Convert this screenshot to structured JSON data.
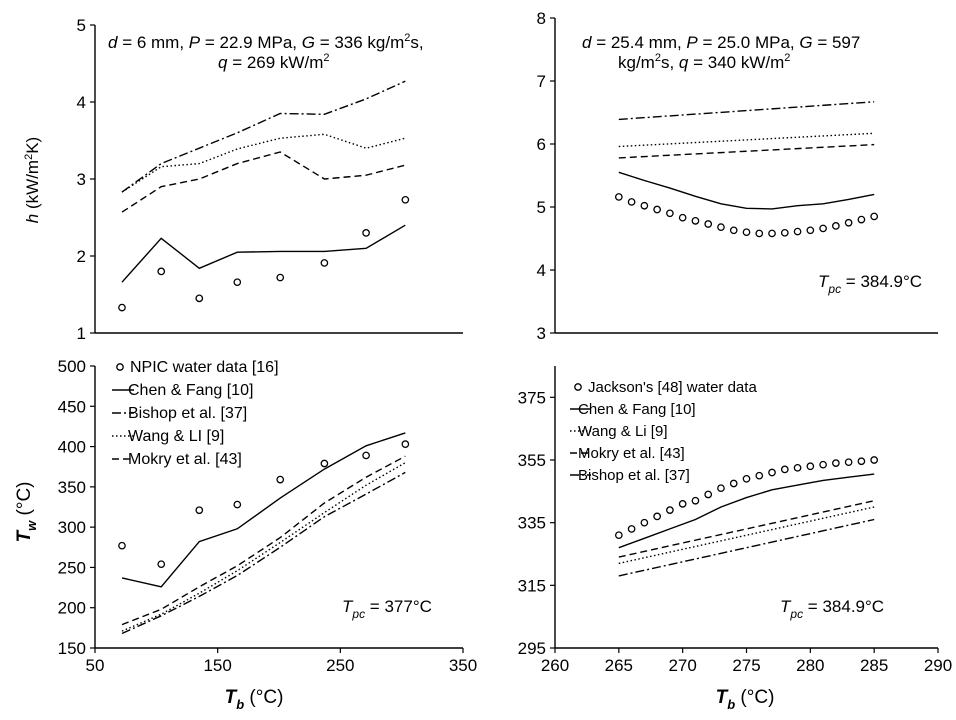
{
  "colors": {
    "line": "#000000",
    "background": "#ffffff"
  },
  "chart_data": [
    {
      "id": "tl",
      "type": "line",
      "ylabel": "h (kW/m2K)",
      "xlabel": "",
      "xlim": [
        50,
        350
      ],
      "ylim": [
        1,
        5
      ],
      "yticks": [
        1,
        2,
        3,
        4,
        5
      ],
      "show_x_ticks": false,
      "annotation_lines": [
        "d = 6 mm, P = 22.9 MPa, G = 336 kg/m2s,",
        "q = 269 kW/m2"
      ],
      "x": [
        72,
        104,
        135,
        166,
        201,
        237,
        271,
        303
      ],
      "series": [
        {
          "style": "circle",
          "values": [
            1.33,
            1.8,
            1.45,
            1.66,
            1.72,
            1.91,
            2.3,
            2.73
          ]
        },
        {
          "style": "solid",
          "values": [
            1.66,
            2.23,
            1.84,
            2.05,
            2.06,
            2.06,
            2.1,
            2.4
          ]
        },
        {
          "style": "dashed",
          "values": [
            2.57,
            2.9,
            3.0,
            3.2,
            3.35,
            3.0,
            3.05,
            3.18
          ]
        },
        {
          "style": "dotted",
          "values": [
            2.83,
            3.16,
            3.2,
            3.39,
            3.53,
            3.58,
            3.4,
            3.53
          ]
        },
        {
          "style": "dashdot",
          "values": [
            2.83,
            3.2,
            3.4,
            3.6,
            3.85,
            3.84,
            4.04,
            4.27
          ]
        }
      ]
    },
    {
      "id": "tr",
      "type": "line",
      "ylabel": "",
      "xlabel": "",
      "xlim": [
        260,
        290
      ],
      "ylim": [
        3,
        8
      ],
      "yticks": [
        3,
        4,
        5,
        6,
        7,
        8
      ],
      "show_x_ticks": false,
      "annotation_lines": [
        "d = 25.4 mm, P = 25.0 MPa, G = 597",
        "kg/m2s, q = 340 kW/m2"
      ],
      "tpc_label": "Tpc = 384.9°C",
      "series": [
        {
          "style": "circle",
          "x": [
            265,
            266,
            267,
            268,
            269,
            270,
            271,
            272,
            273,
            274,
            275,
            276,
            277,
            278,
            279,
            280,
            281,
            282,
            283,
            284,
            285
          ],
          "values": [
            5.16,
            5.08,
            5.02,
            4.96,
            4.9,
            4.83,
            4.78,
            4.73,
            4.68,
            4.63,
            4.6,
            4.58,
            4.58,
            4.59,
            4.61,
            4.63,
            4.66,
            4.7,
            4.75,
            4.8,
            4.85
          ]
        },
        {
          "style": "solid",
          "x": [
            265,
            267,
            269,
            271,
            273,
            275,
            277,
            279,
            281,
            283,
            285
          ],
          "values": [
            5.55,
            5.42,
            5.3,
            5.17,
            5.05,
            4.98,
            4.97,
            5.02,
            5.05,
            5.12,
            5.2
          ]
        },
        {
          "style": "dashed",
          "x": [
            265,
            285
          ],
          "values": [
            5.78,
            5.99
          ]
        },
        {
          "style": "dotted",
          "x": [
            265,
            285
          ],
          "values": [
            5.96,
            6.17
          ]
        },
        {
          "style": "dashdot",
          "x": [
            265,
            285
          ],
          "values": [
            6.39,
            6.67
          ]
        }
      ]
    },
    {
      "id": "bl",
      "type": "line",
      "ylabel": "Tw (°C)",
      "xlabel": "Tb (°C)",
      "xlim": [
        50,
        350
      ],
      "ylim": [
        150,
        500
      ],
      "yticks": [
        150,
        200,
        250,
        300,
        350,
        400,
        450,
        500
      ],
      "xticks": [
        50,
        150,
        250,
        350
      ],
      "xtick_labels": [
        "50",
        "150",
        "250",
        "350"
      ],
      "show_x_ticks": true,
      "tpc_label": "Tpc = 377°C",
      "x": [
        72,
        104,
        135,
        166,
        201,
        237,
        271,
        303
      ],
      "legend": [
        {
          "style": "circle",
          "label": "NPIC water data [16]"
        },
        {
          "style": "solid",
          "label": "Chen & Fang [10]"
        },
        {
          "style": "dashdot",
          "label": "Bishop et al. [37]"
        },
        {
          "style": "dotted",
          "label": "Wang & LI [9]"
        },
        {
          "style": "dashed",
          "label": "Mokry et al. [43]"
        }
      ],
      "series": [
        {
          "style": "circle",
          "values": [
            277,
            254,
            321,
            328,
            359,
            379,
            389,
            403
          ]
        },
        {
          "style": "solid",
          "values": [
            237,
            226,
            282,
            298,
            336,
            372,
            401,
            417
          ]
        },
        {
          "style": "dashed",
          "values": [
            179,
            198,
            226,
            252,
            287,
            330,
            362,
            388
          ]
        },
        {
          "style": "dotted",
          "values": [
            171,
            192,
            218,
            246,
            281,
            318,
            352,
            380
          ]
        },
        {
          "style": "dashdot",
          "values": [
            168,
            190,
            214,
            240,
            275,
            313,
            341,
            368
          ]
        }
      ]
    },
    {
      "id": "br",
      "type": "line",
      "ylabel": "",
      "xlabel": "Tb (°C)",
      "xlim": [
        260,
        290
      ],
      "ylim": [
        295,
        385
      ],
      "yticks": [
        295,
        315,
        335,
        355,
        375
      ],
      "xticks": [
        260,
        265,
        270,
        275,
        280,
        285,
        290
      ],
      "xtick_labels": [
        "260",
        "265",
        "270",
        "275",
        "280",
        "285",
        "290"
      ],
      "show_x_ticks": true,
      "tpc_label": "Tpc = 384.9°C",
      "legend": [
        {
          "style": "circle",
          "label": "Jackson's [48] water data"
        },
        {
          "style": "solid",
          "label": "Chen & Fang [10]"
        },
        {
          "style": "dotted",
          "label": "Wang & Li [9]"
        },
        {
          "style": "dashed",
          "label": "Mokry et al. [43]"
        },
        {
          "style": "dashdot",
          "label": "Bishop et al. [37]"
        }
      ],
      "series": [
        {
          "style": "circle",
          "x": [
            265,
            266,
            267,
            268,
            269,
            270,
            271,
            272,
            273,
            274,
            275,
            276,
            277,
            278,
            279,
            280,
            281,
            282,
            283,
            284,
            285
          ],
          "values": [
            331,
            333,
            335,
            337,
            339,
            341,
            342,
            344,
            346,
            347.5,
            349,
            350,
            351,
            352,
            352.5,
            353,
            353.5,
            354,
            354.3,
            354.6,
            355
          ]
        },
        {
          "style": "solid",
          "x": [
            265,
            267,
            269,
            271,
            273,
            275,
            277,
            279,
            281,
            283,
            285
          ],
          "values": [
            327,
            330,
            333,
            336,
            340,
            343,
            345.5,
            347,
            348.5,
            349.5,
            350.5
          ]
        },
        {
          "style": "dashed",
          "x": [
            265,
            285
          ],
          "values": [
            324,
            342
          ]
        },
        {
          "style": "dotted",
          "x": [
            265,
            285
          ],
          "values": [
            322,
            340
          ]
        },
        {
          "style": "dashdot",
          "x": [
            265,
            285
          ],
          "values": [
            318,
            336
          ]
        }
      ]
    }
  ]
}
